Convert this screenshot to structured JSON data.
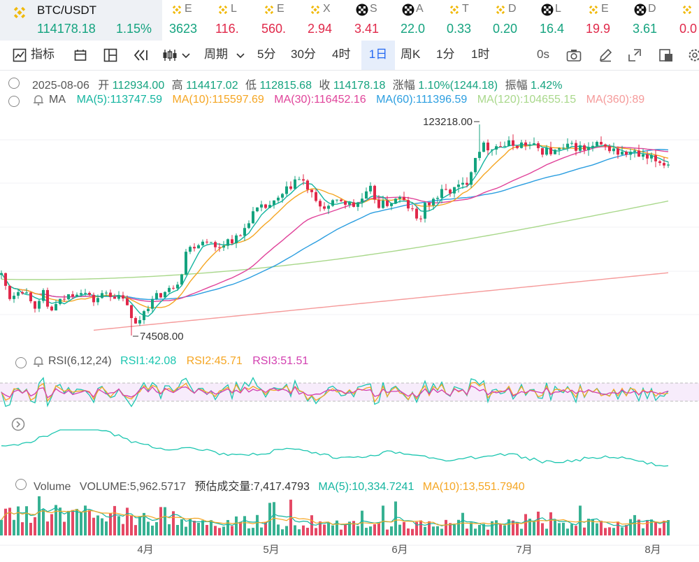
{
  "ticker": {
    "main": {
      "symbol": "BTC/USDT",
      "price": "114178.18",
      "change": "1.15%"
    },
    "items": [
      {
        "initial": "E",
        "value": "3623",
        "dir": "up",
        "icon": "bnb-icon"
      },
      {
        "initial": "L",
        "value": "116.",
        "dir": "down",
        "icon": "bnb-icon"
      },
      {
        "initial": "E",
        "value": "560.",
        "dir": "down",
        "icon": "bnb-icon"
      },
      {
        "initial": "X",
        "value": "2.94",
        "dir": "down",
        "icon": "bnb-icon"
      },
      {
        "initial": "S",
        "value": "3.41",
        "dir": "down",
        "icon": "okx-icon"
      },
      {
        "initial": "A",
        "value": "22.0",
        "dir": "up",
        "icon": "okx-icon"
      },
      {
        "initial": "T",
        "value": "0.33",
        "dir": "up",
        "icon": "bnb-icon"
      },
      {
        "initial": "D",
        "value": "0.20",
        "dir": "up",
        "icon": "bnb-icon"
      },
      {
        "initial": "L",
        "value": "16.4",
        "dir": "up",
        "icon": "okx-icon"
      },
      {
        "initial": "E",
        "value": "19.9",
        "dir": "down",
        "icon": "bnb-icon"
      },
      {
        "initial": "D",
        "value": "3.61",
        "dir": "up",
        "icon": "okx-icon"
      },
      {
        "initial": "",
        "value": "0.0",
        "dir": "down",
        "icon": "bnb-icon"
      }
    ]
  },
  "toolbar": {
    "indicators": "指标",
    "period": "周期",
    "p5m": "5分",
    "p30m": "30分",
    "p4h": "4时",
    "p1d": "1日",
    "pweek": "周K",
    "p1m": "1分",
    "p1h": "1时",
    "countdown": "0s"
  },
  "ohlc": {
    "date": "2025-08-06",
    "open_label": "开",
    "open": "112934.00",
    "high_label": "高",
    "high": "114417.02",
    "low_label": "低",
    "low": "112815.68",
    "close_label": "收",
    "close": "114178.18",
    "change_label": "涨幅",
    "change": "1.10%(1244.18)",
    "amp_label": "振幅",
    "amp": "1.42%"
  },
  "ma_legend": {
    "name": "MA",
    "ma5": "MA(5):113747.59",
    "ma10": "MA(10):115597.69",
    "ma30": "MA(30):116452.16",
    "ma60": "MA(60):111396.59",
    "ma120": "MA(120):104655.15",
    "ma360": "MA(360):89"
  },
  "rsi_legend": {
    "name": "RSI(6,12,24)",
    "rsi1": "RSI1:42.08",
    "rsi2": "RSI2:45.71",
    "rsi3": "RSI3:51.51"
  },
  "vol_legend": {
    "name": "Volume",
    "volume": "VOLUME:5,962.5717",
    "estimate": "预估成交量:7,417.4793",
    "ma5": "MA(5):10,334.7241",
    "ma10": "MA(10):13,551.7940"
  },
  "colors": {
    "up": "#14a37f",
    "down": "#e0294a",
    "ma5": "#14b5a0",
    "ma10": "#f5a623",
    "ma30": "#e0439a",
    "ma60": "#2b9ee0",
    "ma120": "#a9d88b",
    "ma360": "#f59a9a",
    "rsi1": "#1cc6b0",
    "rsi2": "#f5a623",
    "rsi3": "#d23fb0"
  },
  "chart_data": {
    "type": "candlestick",
    "x_ticks": [
      "4月",
      "5月",
      "6月",
      "7月",
      "8月"
    ],
    "annotations": [
      {
        "text": "123218.00",
        "kind": "high"
      },
      {
        "text": "74508.00",
        "kind": "low"
      }
    ],
    "ma_series": [
      {
        "name": "MA(5)",
        "value": 113747.59
      },
      {
        "name": "MA(10)",
        "value": 115597.69
      },
      {
        "name": "MA(30)",
        "value": 116452.16
      },
      {
        "name": "MA(60)",
        "value": 111396.59
      },
      {
        "name": "MA(120)",
        "value": 104655.15
      }
    ],
    "rsi": {
      "rsi1": 42.08,
      "rsi2": 45.71,
      "rsi3": 51.51
    },
    "volume": {
      "last": 5962.5717,
      "estimated": 7417.4793,
      "ma5": 10334.7241,
      "ma10": 13551.794
    }
  }
}
